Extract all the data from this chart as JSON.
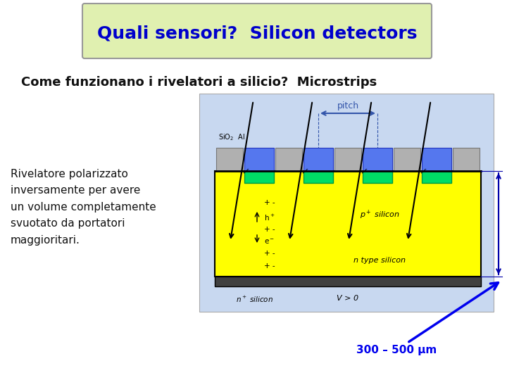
{
  "bg_color": "#ffffff",
  "title_text": "Quali sensori?  Silicon detectors",
  "title_color": "#0000cc",
  "subtitle_text": "Come funzionano i rivelatori a silicio?  Microstrips",
  "body_text": "Rivelatore polarizzato\ninversamente per avere\nun volume completamente\nsvuotato da portatori\nmaggioritari.",
  "annotation_text": "300 – 500 μm",
  "annotation_color": "#0000ee",
  "diag_bg": "#c8d8f0",
  "yellow": "#ffff00",
  "green": "#00dd66",
  "blue_al": "#5577ee",
  "gray_sio2": "#b0b0b0",
  "n_plus_color": "#404040"
}
